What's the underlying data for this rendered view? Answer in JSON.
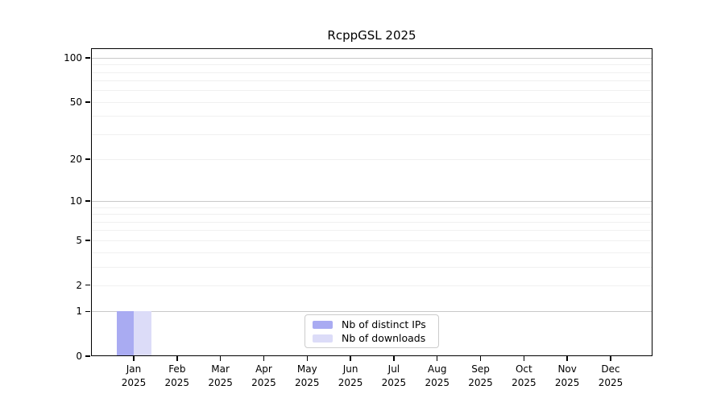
{
  "chart_data": {
    "type": "bar",
    "title": "RcppGSL 2025",
    "categories": [
      {
        "month": "Jan",
        "year": "2025"
      },
      {
        "month": "Feb",
        "year": "2025"
      },
      {
        "month": "Mar",
        "year": "2025"
      },
      {
        "month": "Apr",
        "year": "2025"
      },
      {
        "month": "May",
        "year": "2025"
      },
      {
        "month": "Jun",
        "year": "2025"
      },
      {
        "month": "Jul",
        "year": "2025"
      },
      {
        "month": "Aug",
        "year": "2025"
      },
      {
        "month": "Sep",
        "year": "2025"
      },
      {
        "month": "Oct",
        "year": "2025"
      },
      {
        "month": "Nov",
        "year": "2025"
      },
      {
        "month": "Dec",
        "year": "2025"
      }
    ],
    "series": [
      {
        "name": "Nb of distinct IPs",
        "color": "#a9abf2",
        "values": [
          1,
          0,
          0,
          0,
          0,
          0,
          0,
          0,
          0,
          0,
          0,
          0
        ]
      },
      {
        "name": "Nb of downloads",
        "color": "#dcdcf8",
        "values": [
          1,
          0,
          0,
          0,
          0,
          0,
          0,
          0,
          0,
          0,
          0,
          0
        ]
      }
    ],
    "yscale": "log1p",
    "ylim": [
      0,
      116
    ],
    "ytick_labels": [
      0,
      1,
      2,
      5,
      10,
      20,
      50,
      100
    ],
    "major_gridlines": [
      1,
      10,
      100
    ],
    "minor_gridlines": [
      2,
      3,
      4,
      5,
      6,
      7,
      8,
      9,
      20,
      30,
      40,
      50,
      60,
      70,
      80,
      90
    ],
    "grid": true,
    "legend_position": "lower center"
  },
  "colors": {
    "axis": "#000000",
    "major_grid": "#c9c9c9",
    "minor_grid": "#f0f0f0",
    "background": "#ffffff"
  }
}
